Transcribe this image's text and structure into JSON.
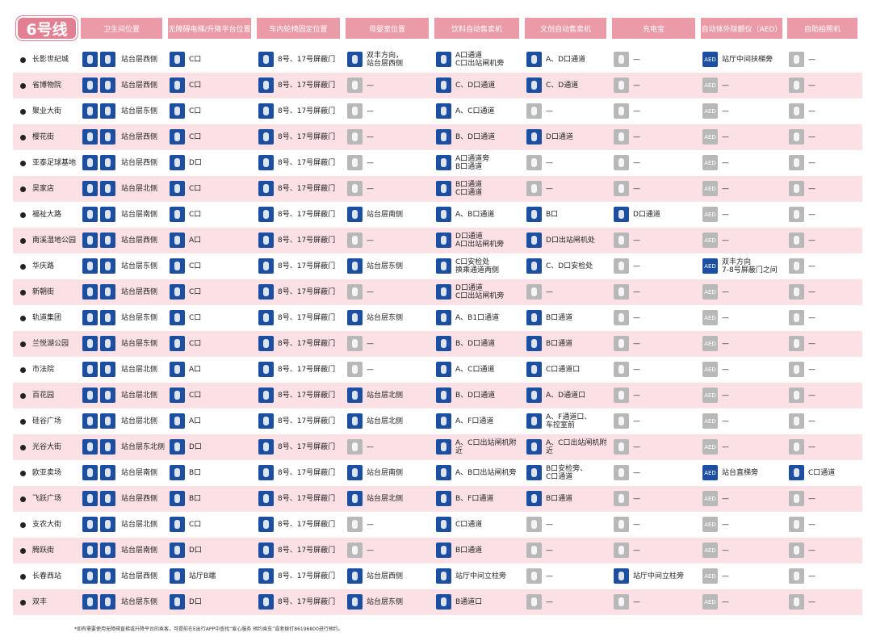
{
  "header": {
    "line": "6号线",
    "columns": [
      "卫生间位置",
      "无障碍电梯/升降平台位置",
      "车内轮椅固定位置",
      "母婴室位置",
      "饮料自动售卖机",
      "文创自动售卖机",
      "充电宝",
      "自动体外除颤仪（AED）",
      "自助拍照机"
    ]
  },
  "aed_icon": "AED",
  "table": {
    "rows": [
      {
        "station": "长影世纪城",
        "cells": [
          "站台层西侧",
          "C口",
          "8号、17号屏蔽门",
          "双丰方向，\n站台层西侧",
          "A口通道\nC口出站闸机旁",
          "A、D口通道",
          "—",
          "站厅中间扶梯旁",
          "—"
        ]
      },
      {
        "station": "省博物院",
        "cells": [
          "站台层西侧",
          "C口",
          "8号、17号屏蔽门",
          "—",
          "C、D口通道",
          "C、D通道",
          "—",
          "—",
          "—"
        ]
      },
      {
        "station": "聚业大街",
        "cells": [
          "站台层东侧",
          "C口",
          "8号、17号屏蔽门",
          "—",
          "A、C口通道",
          "—",
          "—",
          "—",
          "—"
        ]
      },
      {
        "station": "樱花街",
        "cells": [
          "站台层西侧",
          "C口",
          "8号、17号屏蔽门",
          "—",
          "B、D口通道",
          "D口通道",
          "—",
          "—",
          "—"
        ]
      },
      {
        "station": "亚泰足球基地",
        "cells": [
          "站台层西侧",
          "D口",
          "8号、17号屏蔽门",
          "—",
          "A口通道旁\nB口通道",
          "—",
          "—",
          "—",
          "—"
        ]
      },
      {
        "station": "吴家店",
        "cells": [
          "站台层北侧",
          "C口",
          "8号、17号屏蔽门",
          "—",
          "B口通道\nC口通道",
          "—",
          "—",
          "—",
          "—"
        ]
      },
      {
        "station": "福祉大路",
        "cells": [
          "站台层南侧",
          "C口",
          "8号、17号屏蔽门",
          "站台层南侧",
          "A、B口通道",
          "B口",
          "D口通道",
          "—",
          "—"
        ]
      },
      {
        "station": "南溪湿地公园",
        "cells": [
          "站台层西侧",
          "A口",
          "8号、17号屏蔽门",
          "—",
          "D口通道\nA口出站闸机旁",
          "D口出站闸机处",
          "—",
          "—",
          "—"
        ]
      },
      {
        "station": "华庆路",
        "cells": [
          "站台层东侧",
          "C口",
          "8号、17号屏蔽门",
          "站台层东侧",
          "C口安检处\n换乘通道两侧",
          "C、D口安检处",
          "—",
          "双丰方向\n7-8号屏蔽门之间",
          "—"
        ]
      },
      {
        "station": "新朝街",
        "cells": [
          "站台层西侧",
          "C口",
          "8号、17号屏蔽门",
          "—",
          "D口通道\nC口出站闸机旁",
          "—",
          "—",
          "—",
          "—"
        ]
      },
      {
        "station": "轨道集团",
        "cells": [
          "站台层东侧",
          "C口",
          "8号、17号屏蔽门",
          "站台层东侧",
          "A、B1口通道",
          "B口通道",
          "—",
          "—",
          "—"
        ]
      },
      {
        "station": "兰悦湖公园",
        "cells": [
          "站台层东侧",
          "C口",
          "8号、17号屏蔽门",
          "—",
          "B、D口通道",
          "B口通道",
          "—",
          "—",
          "—"
        ]
      },
      {
        "station": "市法院",
        "cells": [
          "站台层北侧",
          "A口",
          "8号、17号屏蔽门",
          "—",
          "A、C口通道",
          "C口通道口",
          "—",
          "—",
          "—"
        ]
      },
      {
        "station": "百花园",
        "cells": [
          "站台层北侧",
          "C口",
          "8号、17号屏蔽门",
          "站台层北侧",
          "B、D口通道",
          "A、D通道口",
          "—",
          "—",
          "—"
        ]
      },
      {
        "station": "硅谷广场",
        "cells": [
          "站台层北侧",
          "A口",
          "8号、17号屏蔽门",
          "站台层北侧",
          "A、F口通道",
          "A、F通道口、\n车控室前",
          "—",
          "—",
          "—"
        ]
      },
      {
        "station": "光谷大街",
        "cells": [
          "站台层东北侧",
          "D口",
          "8号、17号屏蔽门",
          "—",
          "A、C口出站闸机附近",
          "A、C口出站闸机附近",
          "—",
          "—",
          "—"
        ]
      },
      {
        "station": "欧亚卖场",
        "cells": [
          "站台层南侧",
          "B口",
          "8号、17号屏蔽门",
          "站台层南侧",
          "A、B口出站闸机旁",
          "B口安检旁、\nC口通道",
          "—",
          "站台直梯旁",
          "C口通道"
        ]
      },
      {
        "station": "飞跃广场",
        "cells": [
          "站台层西侧",
          "B口",
          "8号、17号屏蔽门",
          "站台层北侧",
          "B、F口通道",
          "B口通道",
          "—",
          "—",
          "—"
        ]
      },
      {
        "station": "支农大街",
        "cells": [
          "站台层北侧",
          "C口",
          "8号、17号屏蔽门",
          "—",
          "C口通道",
          "—",
          "—",
          "—",
          "—"
        ]
      },
      {
        "station": "腾跃街",
        "cells": [
          "站台层南侧",
          "D口",
          "8号、17号屏蔽门",
          "—",
          "B口通道",
          "—",
          "—",
          "—",
          "—"
        ]
      },
      {
        "station": "长春西站",
        "cells": [
          "站台层西侧",
          "站厅B端",
          "8号、17号屏蔽门",
          "站台层西侧",
          "站厅中间立柱旁",
          "—",
          "站厅中间立柱旁",
          "—",
          "—"
        ]
      },
      {
        "station": "双丰",
        "cells": [
          "站台层东侧",
          "D口",
          "8号、17号屏蔽门",
          "站台层东侧",
          "B通道口",
          "—",
          "—",
          "—",
          "—"
        ]
      }
    ]
  },
  "footnote": "*如有需要使用无障碍直梯或升降平台的乘客，可提前在E出行APP中查找“爱心服务 预约乘车”或者拨打86196800进行预约。"
}
